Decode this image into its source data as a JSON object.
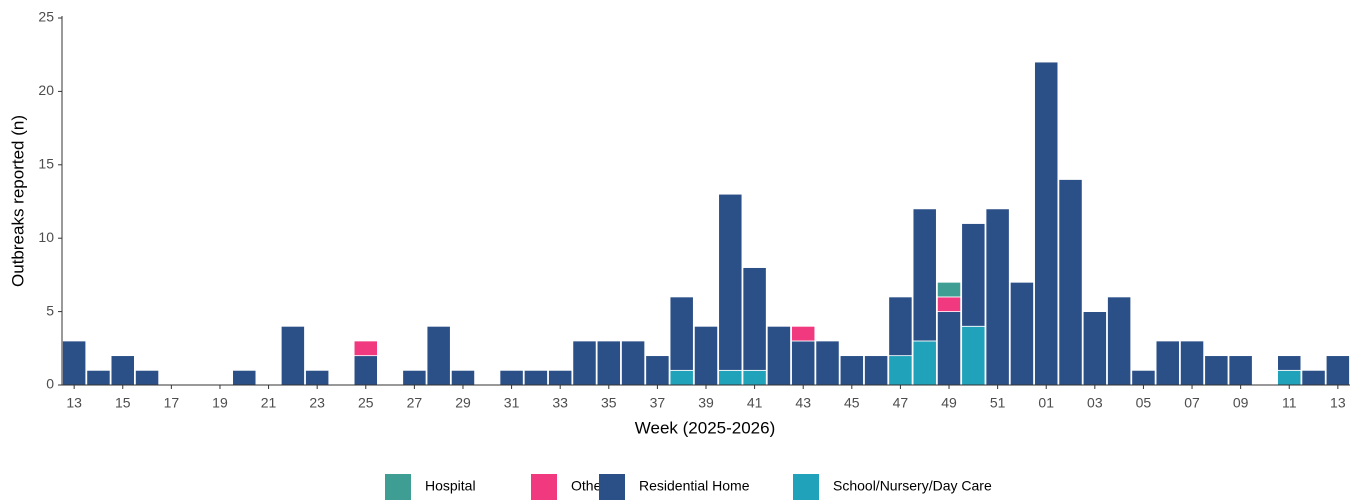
{
  "chart_data": {
    "type": "stacked_bar",
    "x_label": "Week (2025-2026)",
    "y_label": "Outbreaks reported (n)",
    "categories": [
      "13",
      null,
      "15",
      null,
      "17",
      null,
      "19",
      null,
      "21",
      null,
      "23",
      null,
      "25",
      null,
      "27",
      null,
      "29",
      null,
      "31",
      null,
      "33",
      null,
      "35",
      null,
      "37",
      null,
      "39",
      null,
      "41",
      null,
      "43",
      null,
      "45",
      null,
      "47",
      null,
      "49",
      null,
      "51",
      null,
      "01",
      null,
      "03",
      null,
      "05",
      null,
      "07",
      null,
      "09",
      null,
      "11",
      null,
      "13"
    ],
    "series": [
      {
        "name": "Hospital",
        "color": "#3f9e93",
        "values": [
          0,
          0,
          0,
          0,
          0,
          0,
          0,
          0,
          0,
          0,
          0,
          0,
          0,
          0,
          0,
          0,
          0,
          0,
          0,
          0,
          0,
          0,
          0,
          0,
          0,
          0,
          0,
          0,
          0,
          0,
          0,
          0,
          0,
          0,
          0,
          0,
          1,
          0,
          0,
          0,
          0,
          0,
          0,
          0,
          0,
          0,
          0,
          0,
          0,
          0,
          0,
          0,
          0
        ]
      },
      {
        "name": "Other",
        "color": "#f0397f",
        "values": [
          0,
          0,
          0,
          0,
          0,
          0,
          0,
          0,
          0,
          0,
          0,
          0,
          1,
          0,
          0,
          0,
          0,
          0,
          0,
          0,
          0,
          0,
          0,
          0,
          0,
          0,
          0,
          0,
          0,
          0,
          1,
          0,
          0,
          0,
          0,
          0,
          1,
          0,
          0,
          0,
          0,
          0,
          0,
          0,
          0,
          0,
          0,
          0,
          0,
          0,
          0,
          0,
          0
        ]
      },
      {
        "name": "Residential Home",
        "color": "#2b4f87",
        "values": [
          3,
          1,
          2,
          1,
          0,
          0,
          0,
          1,
          0,
          4,
          1,
          0,
          2,
          0,
          1,
          4,
          1,
          0,
          1,
          1,
          1,
          3,
          3,
          3,
          2,
          5,
          4,
          12,
          7,
          4,
          3,
          3,
          2,
          2,
          4,
          9,
          5,
          7,
          12,
          7,
          22,
          14,
          5,
          6,
          1,
          3,
          3,
          2,
          2,
          0,
          1,
          1,
          2
        ]
      },
      {
        "name": "School/Nursery/Day Care",
        "color": "#21a2bb",
        "values": [
          0,
          0,
          0,
          0,
          0,
          0,
          0,
          0,
          0,
          0,
          0,
          0,
          0,
          0,
          0,
          0,
          0,
          0,
          0,
          0,
          0,
          0,
          0,
          0,
          0,
          1,
          0,
          1,
          1,
          0,
          0,
          0,
          0,
          0,
          2,
          3,
          0,
          4,
          0,
          0,
          0,
          0,
          0,
          0,
          0,
          0,
          0,
          0,
          0,
          0,
          1,
          0,
          0
        ]
      }
    ],
    "ylim": [
      0,
      25
    ],
    "yticks": [
      0,
      5,
      10,
      15,
      20,
      25
    ],
    "grid": false,
    "legend": "bottom"
  }
}
